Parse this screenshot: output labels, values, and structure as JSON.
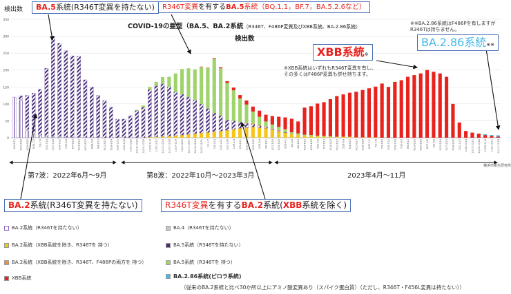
{
  "header": {
    "ylabel": "検出数",
    "title_main": "COVID-19の亜型（BA.5、BA.2系統",
    "title_small": "（R346T、F486P変異及びXBB系統、BA.2.86系統）",
    "subtitle": "検出数",
    "source": "横浜市衛生研究所"
  },
  "callouts": {
    "ba5_no": {
      "a": "BA.5",
      "b": "系統(R346T変異を持たない)"
    },
    "ba5_r346t": {
      "a": "R346T変異",
      "b": "を有する",
      "c": "BA.5",
      "d": "系統（BQ.1.1，BF.7，BA.5.2.6など）"
    },
    "xbb": {
      "a": "XBB",
      "b": "系統",
      "c": "※"
    },
    "ba286": {
      "a": "BA.2.86",
      "b": "系統",
      "c": "※※"
    },
    "ba2_no": {
      "a": "BA.2",
      "b": "系統(R346T変異を持たない)"
    },
    "ba2_r346t": {
      "a": "R346T変異",
      "b": "を有する",
      "c": "BA.2",
      "d": "系統(",
      "e": "XBB",
      "f": "系統を除く)"
    }
  },
  "notes": {
    "xbb_1": "※XBB系統はいずれもR346T変異を有し、",
    "xbb_2": "その多くはF486P変異も併せ持ちます。",
    "ba286_1": "※※BA.2.86系統はF486Pを有しますが",
    "ba286_2": "R346Tは持ちません。"
  },
  "waves": {
    "w7": "第7波：2022年6月～9月",
    "w8": "第8波：2022年10月～2023年3月",
    "w9": "2023年4月～11月"
  },
  "legend": {
    "ba2_no": "BA.2系統（R346Tを持たない）",
    "ba4": "BA.4（R346Tを持たない）",
    "ba2_r346t": "BA.2系統（XBB系統を除き、R346Tを 持つ）",
    "ba5_no": "BA.5系統（R346Tを持たない）",
    "ba2_f486p": "BA.2系統（XBB系統を除き、R346T、F486Pの両方を 持つ）",
    "ba5_r346t": "BA.5系統（R346Tを 持つ）",
    "xbb": "XBB系統",
    "ba286": "BA.2.86系統(ピロラ系統)",
    "ba286_note": "（従来のBA.2系統と比べ30か所以上にアミノ酸変異あり（スパイク蛋白質）（ただし、R346T・F456L変異は持たない））"
  },
  "colors": {
    "ba2_no": "#8e6bbf",
    "ba4": "#c8c8c8",
    "ba2_r346t": "#f5c518",
    "ba5_no": "#4b2e7a",
    "ba2_f486p": "#f0903c",
    "ba5_r346t": "#9fd36b",
    "xbb": "#e8231e",
    "ba286": "#45b7e8",
    "arrow": "#111111"
  },
  "chart_data": {
    "type": "bar",
    "stacked": true,
    "ylim": [
      0,
      350
    ],
    "yticks": [
      0,
      50,
      100,
      150,
      200,
      250,
      300,
      350
    ],
    "grid": true,
    "x": [
      "6/5-6/11",
      "6/12-6/18",
      "6/19-6/25",
      "6/26-7/2",
      "7/3-7/9",
      "7/10-7/16",
      "7/17-7/23",
      "7/24-7/30",
      "7/31-8/6",
      "8/7-8/13",
      "8/14-8/20",
      "8/21-8/27",
      "8/28-9/3",
      "9/4-9/10",
      "9/11-9/17",
      "9/18-9/24",
      "9/25-10/1",
      "10/2-10/8",
      "10/9-10/15",
      "10/16-10/22",
      "10/23-10/29",
      "10/30-11/5",
      "11/6-11/12",
      "11/13-11/19",
      "11/20-11/26",
      "11/27-12/3",
      "12/4-12/10",
      "12/11-12/17",
      "12/18-12/24",
      "12/25-12/31",
      "1/1-1/7",
      "1/8-1/14",
      "1/15-1/21",
      "1/22-1/28",
      "1/29-2/4",
      "2/5-2/11",
      "2/12-2/18",
      "2/19-2/25",
      "2/26-3/4",
      "3/5-3/11",
      "3/12-3/18",
      "3/19-3/25",
      "3/26-4/1",
      "4/2-4/8",
      "4/9-4/15",
      "4/16-4/22",
      "4/23-4/29",
      "4/30-5/6",
      "5/7-5/13",
      "5/14-5/20",
      "5/21-5/27",
      "5/28-6/3",
      "6/4-6/10",
      "6/11-6/17",
      "6/18-6/24",
      "6/25-7/1",
      "7/2-7/8",
      "7/9-7/15",
      "7/16-7/22",
      "7/23-7/29",
      "7/30-8/5",
      "8/6-8/12",
      "8/13-8/19",
      "8/20-8/26",
      "8/27-9/2",
      "9/3-9/9",
      "9/10-9/16",
      "9/17-9/23",
      "9/24-9/30",
      "10/1-10/7",
      "10/8-10/14",
      "10/15-10/21",
      "10/22-10/28",
      "10/29-11/4",
      "11/5-11/11",
      "11/12-11/18"
    ],
    "series": [
      {
        "name": "BA.2系統（R346Tを持たない）",
        "key": "ba2_no",
        "values": [
          120,
          110,
          20,
          10,
          5,
          3,
          2,
          2,
          1,
          1,
          0,
          0,
          0,
          0,
          0,
          0,
          0,
          0,
          0,
          0,
          0,
          0,
          0,
          0,
          0,
          0,
          0,
          0,
          0,
          0,
          0,
          0,
          0,
          0,
          0,
          0,
          0,
          0,
          0,
          0,
          0,
          0,
          0,
          0,
          0,
          0,
          0,
          0,
          0,
          0,
          0,
          0,
          0,
          0,
          0,
          0,
          0,
          0,
          0,
          0,
          0,
          0,
          0,
          0,
          0,
          0,
          0,
          0,
          0,
          0,
          0,
          0,
          0,
          0,
          0,
          0
        ]
      },
      {
        "name": "BA.4（R346Tを持たない）",
        "key": "ba4",
        "values": [
          0,
          4,
          5,
          4,
          3,
          2,
          2,
          2,
          1,
          1,
          1,
          1,
          0,
          0,
          0,
          0,
          0,
          0,
          0,
          0,
          0,
          0,
          0,
          0,
          0,
          0,
          0,
          0,
          0,
          0,
          0,
          0,
          0,
          0,
          0,
          0,
          0,
          0,
          0,
          0,
          0,
          0,
          0,
          0,
          0,
          0,
          0,
          0,
          0,
          0,
          0,
          0,
          0,
          0,
          0,
          0,
          0,
          0,
          0,
          0,
          0,
          0,
          0,
          0,
          0,
          0,
          0,
          0,
          0,
          0,
          0,
          0,
          0,
          0,
          0,
          0
        ]
      },
      {
        "name": "BA.2系統（XBB系統を除き、R346Tを 持つ）",
        "key": "ba2_r346t",
        "values": [
          0,
          0,
          0,
          0,
          0,
          0,
          0,
          0,
          0,
          0,
          0,
          0,
          0,
          0,
          0,
          0,
          0,
          0,
          0,
          0,
          0,
          2,
          3,
          4,
          5,
          5,
          8,
          10,
          12,
          14,
          16,
          18,
          20,
          22,
          25,
          28,
          30,
          32,
          30,
          28,
          24,
          20,
          15,
          10,
          8,
          6,
          5,
          4,
          3,
          3,
          2,
          2,
          2,
          1,
          1,
          1,
          1,
          0,
          0,
          0,
          0,
          0,
          0,
          0,
          0,
          0,
          0,
          0,
          0,
          0,
          0,
          0,
          0,
          0,
          0,
          0
        ]
      },
      {
        "name": "BA.5系統（R346Tを持たない）",
        "key": "ba5_no",
        "values": [
          0,
          10,
          100,
          118,
          135,
          200,
          295,
          275,
          255,
          240,
          240,
          170,
          150,
          125,
          110,
          90,
          55,
          55,
          65,
          80,
          90,
          140,
          150,
          155,
          145,
          130,
          120,
          110,
          100,
          85,
          70,
          55,
          45,
          30,
          25,
          18,
          12,
          8,
          5,
          3,
          2,
          1,
          1,
          0,
          0,
          0,
          0,
          0,
          0,
          0,
          0,
          0,
          0,
          0,
          0,
          0,
          0,
          0,
          0,
          0,
          0,
          0,
          0,
          0,
          0,
          0,
          0,
          0,
          0,
          0,
          0,
          0,
          0,
          0,
          0,
          0
        ]
      },
      {
        "name": "BA.2系統（XBB系統を除き、R346T、F486Pの両方を 持つ）",
        "key": "ba2_f486p",
        "values": [
          0,
          0,
          0,
          0,
          0,
          0,
          0,
          0,
          0,
          0,
          0,
          0,
          0,
          0,
          0,
          0,
          0,
          0,
          0,
          0,
          0,
          0,
          0,
          0,
          0,
          0,
          0,
          0,
          0,
          0,
          0,
          0,
          0,
          0,
          0,
          0,
          1,
          2,
          2,
          2,
          1,
          1,
          1,
          1,
          1,
          0,
          0,
          0,
          0,
          0,
          0,
          0,
          0,
          0,
          0,
          0,
          0,
          0,
          0,
          0,
          0,
          0,
          0,
          0,
          0,
          0,
          0,
          0,
          0,
          0,
          0,
          0,
          0,
          0,
          0,
          0
        ]
      },
      {
        "name": "BA.5系統（R346Tを 持つ）",
        "key": "ba5_r346t",
        "values": [
          0,
          0,
          0,
          0,
          0,
          0,
          0,
          0,
          0,
          0,
          0,
          0,
          0,
          0,
          0,
          0,
          0,
          0,
          0,
          2,
          5,
          8,
          12,
          20,
          30,
          55,
          75,
          85,
          90,
          110,
          120,
          160,
          140,
          110,
          90,
          70,
          55,
          35,
          25,
          15,
          12,
          10,
          8,
          5,
          4,
          3,
          3,
          2,
          2,
          1,
          1,
          1,
          1,
          0,
          0,
          0,
          0,
          0,
          0,
          0,
          0,
          0,
          0,
          0,
          0,
          0,
          0,
          0,
          0,
          0,
          0,
          0,
          0,
          0,
          0,
          0
        ]
      },
      {
        "name": "XBB系統",
        "key": "xbb",
        "values": [
          0,
          0,
          0,
          0,
          0,
          0,
          0,
          0,
          0,
          0,
          0,
          0,
          0,
          0,
          0,
          0,
          0,
          0,
          0,
          0,
          0,
          0,
          0,
          0,
          0,
          0,
          0,
          0,
          0,
          1,
          1,
          2,
          3,
          5,
          8,
          10,
          12,
          15,
          18,
          20,
          25,
          30,
          35,
          40,
          35,
          80,
          85,
          95,
          100,
          110,
          120,
          125,
          130,
          135,
          140,
          145,
          150,
          160,
          150,
          165,
          170,
          180,
          185,
          190,
          200,
          195,
          190,
          180,
          100,
          45,
          20,
          15,
          12,
          8,
          5,
          3
        ]
      },
      {
        "name": "BA.2.86系統(ピロラ系統)",
        "key": "ba286",
        "values": [
          0,
          0,
          0,
          0,
          0,
          0,
          0,
          0,
          0,
          0,
          0,
          0,
          0,
          0,
          0,
          0,
          0,
          0,
          0,
          0,
          0,
          0,
          0,
          0,
          0,
          0,
          0,
          0,
          0,
          0,
          0,
          0,
          0,
          0,
          0,
          0,
          0,
          0,
          0,
          0,
          0,
          0,
          0,
          0,
          0,
          0,
          0,
          0,
          0,
          0,
          0,
          0,
          0,
          0,
          0,
          0,
          0,
          0,
          0,
          0,
          0,
          0,
          0,
          0,
          0,
          0,
          0,
          0,
          0,
          0,
          0,
          0,
          0,
          2,
          3,
          4
        ]
      }
    ]
  }
}
